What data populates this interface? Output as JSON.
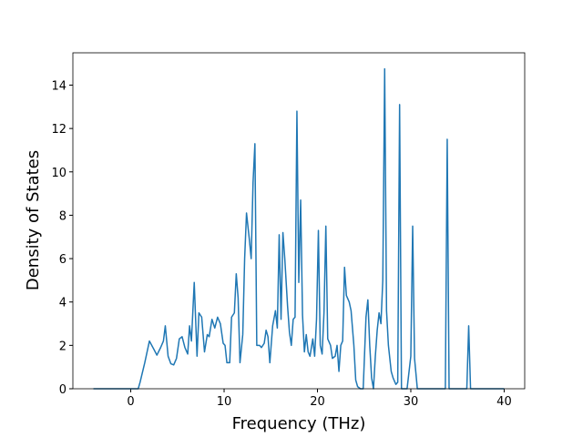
{
  "chart_data": {
    "type": "line",
    "x_label": "Frequency (THz)",
    "y_label": "Density of States",
    "xlim": [
      -6.2,
      42.2
    ],
    "ylim": [
      0,
      15.49
    ],
    "xticks": [
      0,
      10,
      20,
      30,
      40
    ],
    "yticks": [
      0,
      2,
      4,
      6,
      8,
      10,
      12,
      14
    ],
    "series": [
      {
        "color": "#1f77b4",
        "x": [
          -4,
          0.8,
          1.0,
          1.5,
          2.0,
          2.5,
          2.8,
          3.2,
          3.5,
          3.7,
          4.0,
          4.3,
          4.6,
          4.9,
          5.2,
          5.5,
          5.8,
          6.1,
          6.3,
          6.5,
          6.8,
          7.1,
          7.3,
          7.6,
          7.9,
          8.2,
          8.4,
          8.7,
          9.0,
          9.3,
          9.6,
          9.9,
          10.1,
          10.3,
          10.6,
          10.8,
          11.1,
          11.3,
          11.5,
          11.7,
          12.0,
          12.2,
          12.4,
          12.7,
          12.9,
          13.1,
          13.3,
          13.5,
          13.8,
          14.0,
          14.3,
          14.5,
          14.7,
          14.9,
          15.2,
          15.5,
          15.7,
          15.9,
          16.1,
          16.3,
          16.5,
          16.8,
          17.0,
          17.2,
          17.4,
          17.6,
          17.8,
          18.0,
          18.2,
          18.4,
          18.6,
          18.8,
          19.0,
          19.2,
          19.5,
          19.7,
          19.9,
          20.1,
          20.3,
          20.5,
          20.7,
          20.9,
          21.1,
          21.4,
          21.6,
          21.9,
          22.1,
          22.3,
          22.5,
          22.7,
          22.9,
          23.1,
          23.4,
          23.6,
          23.9,
          24.1,
          24.3,
          24.6,
          24.9,
          25.2,
          25.4,
          25.6,
          25.8,
          26.0,
          26.2,
          26.4,
          26.6,
          26.8,
          27.0,
          27.2,
          27.4,
          27.6,
          27.9,
          28.1,
          28.4,
          28.6,
          28.8,
          29.0,
          29.6,
          30.0,
          30.2,
          30.4,
          30.7,
          33.7,
          33.9,
          34.1,
          36.0,
          36.2,
          36.4,
          40
        ],
        "values": [
          0,
          0,
          0.3,
          1.2,
          2.2,
          1.8,
          1.55,
          1.9,
          2.2,
          2.9,
          1.5,
          1.15,
          1.1,
          1.4,
          2.3,
          2.4,
          1.9,
          1.6,
          2.9,
          2.2,
          4.9,
          1.5,
          3.5,
          3.3,
          1.7,
          2.5,
          2.4,
          3.2,
          2.8,
          3.3,
          3.0,
          2.1,
          2.0,
          1.2,
          1.2,
          3.3,
          3.5,
          5.3,
          4.2,
          1.2,
          2.5,
          6.0,
          8.1,
          6.9,
          6.0,
          9.5,
          11.3,
          2.0,
          2.0,
          1.9,
          2.1,
          2.7,
          2.4,
          1.2,
          2.9,
          3.6,
          2.8,
          7.1,
          3.2,
          7.2,
          6.0,
          3.8,
          2.6,
          2.0,
          3.2,
          3.3,
          12.8,
          4.9,
          8.7,
          3.4,
          1.7,
          2.5,
          1.7,
          1.5,
          2.3,
          1.5,
          3.2,
          7.3,
          2.0,
          1.6,
          3.5,
          7.5,
          2.3,
          2.0,
          1.4,
          1.5,
          2.0,
          0.8,
          2.0,
          2.2,
          5.6,
          4.3,
          4.0,
          3.6,
          2.0,
          0.4,
          0.1,
          0,
          0,
          3.3,
          4.1,
          2.0,
          0.5,
          0,
          1.5,
          2.7,
          3.5,
          3.0,
          5.0,
          14.75,
          3.6,
          2.0,
          0.8,
          0.5,
          0.2,
          0.3,
          13.1,
          0,
          0,
          1.5,
          7.5,
          1.4,
          0,
          0,
          11.5,
          0,
          0,
          2.9,
          0,
          0
        ]
      }
    ]
  }
}
